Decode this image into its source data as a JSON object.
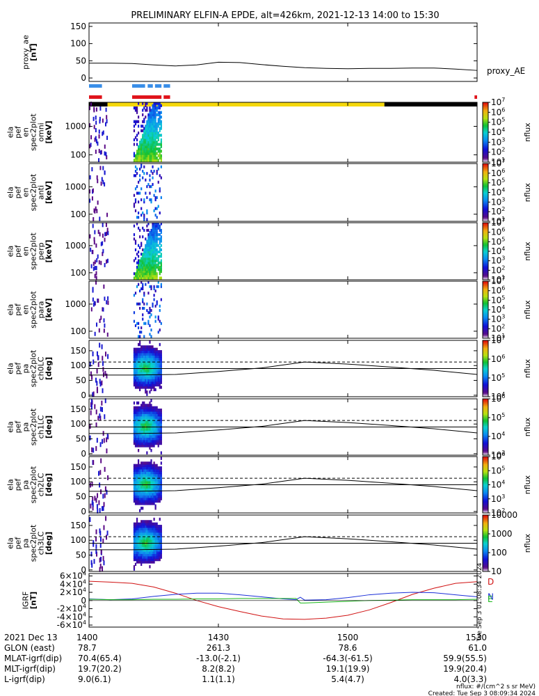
{
  "title": "PRELIMINARY ELFIN-A EPDE, alt=426km, 2021-12-13 14:00 to 15:30",
  "colors": {
    "axis": "#000000",
    "bar_blue": "#3a8ee8",
    "bar_red": "#e0141c",
    "bar_yellow": "#f5d80c",
    "bar_black": "#000000",
    "bgrf_d": "#d01010",
    "bgrf_n": "#1a2ed8",
    "bgrf_e": "#1ab81a"
  },
  "chart_data": [
    {
      "id": "proxy_ae",
      "type": "line",
      "ylabel_lines": [
        "proxy_ae",
        "[nT]"
      ],
      "ylim": [
        -10,
        160
      ],
      "yticks": [
        0,
        50,
        100,
        150
      ],
      "series_label": "proxy_AE",
      "series": [
        {
          "name": "proxy_AE",
          "x": [
            0,
            5,
            10,
            15,
            20,
            25,
            30,
            35,
            40,
            45,
            50,
            55,
            60,
            65,
            70,
            75,
            80,
            85,
            90
          ],
          "y": [
            43,
            43,
            42,
            38,
            35,
            38,
            46,
            45,
            39,
            34,
            30,
            28,
            27,
            28,
            28,
            29,
            29,
            26,
            22
          ]
        }
      ]
    },
    {
      "id": "en_omni",
      "type": "heatmap",
      "ylabel_lines": [
        "ela",
        "pef",
        "en",
        "spec2plot",
        "omni",
        "[keV]"
      ],
      "ylog": true,
      "ylim": [
        55,
        7000
      ],
      "yticks": [
        100,
        1000
      ],
      "ytick_labels": [
        "100",
        "1000"
      ],
      "zlabel": "nflux",
      "zlog": true,
      "zlim": [
        10,
        10000000
      ],
      "zticks": [
        10,
        100,
        1000,
        10000,
        100000,
        1000000,
        10000000
      ]
    },
    {
      "id": "en_anti",
      "type": "heatmap",
      "ylabel_lines": [
        "ela",
        "pef",
        "en",
        "spec2plot",
        "anti",
        "[keV]"
      ],
      "ylog": true,
      "ylim": [
        55,
        7000
      ],
      "yticks": [
        100,
        1000
      ],
      "ytick_labels": [
        "100",
        "1000"
      ],
      "zlabel": "nflux",
      "zlog": true,
      "zlim": [
        10,
        10000000
      ],
      "zticks": [
        10,
        100,
        1000,
        10000,
        100000,
        1000000,
        10000000
      ]
    },
    {
      "id": "en_perp",
      "type": "heatmap",
      "ylabel_lines": [
        "ela",
        "pef",
        "en",
        "spec2plot",
        "perp",
        "[keV]"
      ],
      "ylog": true,
      "ylim": [
        55,
        7000
      ],
      "yticks": [
        100,
        1000
      ],
      "ytick_labels": [
        "100",
        "1000"
      ],
      "zlabel": "nflux",
      "zlog": true,
      "zlim": [
        10,
        10000000
      ],
      "zticks": [
        10,
        100,
        1000,
        10000,
        100000,
        1000000,
        10000000
      ]
    },
    {
      "id": "en_para",
      "type": "heatmap",
      "ylabel_lines": [
        "ela",
        "pef",
        "en",
        "spec2plot",
        "para",
        "[keV]"
      ],
      "ylog": true,
      "ylim": [
        55,
        7000
      ],
      "yticks": [
        100,
        1000
      ],
      "ytick_labels": [
        "100",
        "1000"
      ],
      "zlabel": "nflux",
      "zlog": true,
      "zlim": [
        10,
        10000000
      ],
      "zticks": [
        10,
        100,
        1000,
        10000,
        100000,
        1000000,
        10000000
      ]
    },
    {
      "id": "pa_ch0",
      "type": "heatmap",
      "ylabel_lines": [
        "ela",
        "pef",
        "pa",
        "spec2plot",
        "ch0LC",
        "[deg]"
      ],
      "ylim": [
        -5,
        185
      ],
      "yticks": [
        0,
        50,
        100,
        150
      ],
      "zlabel": "nflux",
      "zlog": true,
      "zlim": [
        10000,
        10000000
      ],
      "zticks": [
        10000,
        100000,
        1000000,
        10000000
      ]
    },
    {
      "id": "pa_ch1",
      "type": "heatmap",
      "ylabel_lines": [
        "ela",
        "pef",
        "pa",
        "spec2plot",
        "ch1LC",
        "[deg]"
      ],
      "ylim": [
        -5,
        185
      ],
      "yticks": [
        0,
        50,
        100,
        150
      ],
      "zlabel": "nflux",
      "zlog": true,
      "zlim": [
        1000,
        1000000
      ],
      "zticks": [
        1000,
        10000,
        100000,
        1000000
      ]
    },
    {
      "id": "pa_ch2",
      "type": "heatmap",
      "ylabel_lines": [
        "ela",
        "pef",
        "pa",
        "spec2plot",
        "ch2LC",
        "[deg]"
      ],
      "ylim": [
        -5,
        185
      ],
      "yticks": [
        0,
        50,
        100,
        150
      ],
      "zlabel": "nflux",
      "zlog": true,
      "zlim": [
        100,
        1000000
      ],
      "zticks": [
        100,
        1000,
        10000,
        100000,
        1000000
      ]
    },
    {
      "id": "pa_ch3",
      "type": "heatmap",
      "ylabel_lines": [
        "ela",
        "pef",
        "pa",
        "spec2plot",
        "ch3LC",
        "[deg]"
      ],
      "ylim": [
        -5,
        185
      ],
      "yticks": [
        0,
        50,
        100,
        150
      ],
      "zlabel": "nflux",
      "zlog": true,
      "zlim": [
        10,
        10000
      ],
      "zticks": [
        10,
        100,
        1000,
        10000
      ],
      "ztick_labels": [
        "10",
        "100",
        "1000",
        "10000"
      ]
    },
    {
      "id": "bgrf",
      "type": "line",
      "ylabel_lines": [
        "IGRF",
        "[nT]"
      ],
      "ylim": [
        -65000,
        66000
      ],
      "yticks": [
        -60000,
        -40000,
        -20000,
        0,
        20000,
        40000,
        60000
      ],
      "series": [
        {
          "name": "D",
          "x": [
            0,
            5,
            10,
            15,
            20,
            25,
            30,
            35,
            40,
            45,
            50,
            55,
            60,
            65,
            70,
            75,
            80,
            85,
            90
          ],
          "y": [
            47000,
            45000,
            42000,
            33000,
            18000,
            0,
            -15000,
            -27000,
            -38000,
            -45000,
            -46000,
            -43000,
            -36000,
            -23000,
            -5000,
            15000,
            30000,
            42000,
            46000
          ]
        },
        {
          "name": "N",
          "x": [
            0,
            5,
            10,
            15,
            20,
            25,
            30,
            35,
            40,
            45,
            48,
            49,
            50,
            55,
            60,
            65,
            70,
            75,
            80,
            85,
            90
          ],
          "y": [
            4000,
            2000,
            4000,
            10000,
            15000,
            18000,
            18000,
            14000,
            9000,
            4000,
            2000,
            8000,
            1000,
            2000,
            7000,
            14000,
            18000,
            20000,
            19000,
            14000,
            9000
          ]
        },
        {
          "name": "E",
          "x": [
            0,
            5,
            10,
            15,
            20,
            25,
            30,
            35,
            40,
            45,
            48,
            49,
            50,
            55,
            60,
            65,
            70,
            75,
            80,
            85,
            90
          ],
          "y": [
            3000,
            2000,
            2000,
            3000,
            3000,
            4000,
            4000,
            5000,
            5000,
            5000,
            5000,
            -6000,
            -6000,
            -4000,
            -2000,
            0,
            1000,
            2000,
            2000,
            2000,
            3000
          ]
        }
      ]
    }
  ],
  "bars": {
    "blue_segments": [
      [
        0.0,
        3.0
      ],
      [
        10.0,
        13.0
      ],
      [
        13.6,
        14.8
      ],
      [
        15.3,
        16.8
      ],
      [
        17.3,
        18.8
      ]
    ],
    "red_segments": [
      [
        0.0,
        3.0
      ],
      [
        10.0,
        16.8
      ],
      [
        17.3,
        18.8
      ],
      [
        89.4,
        90.0
      ]
    ],
    "status_segments": [
      {
        "range": [
          0.0,
          4.3
        ],
        "color": "black"
      },
      {
        "range": [
          4.3,
          68.5
        ],
        "color": "yellow"
      },
      {
        "range": [
          68.5,
          90.0
        ],
        "color": "black"
      }
    ]
  },
  "lc_lines": {
    "solid_x": [
      0,
      10,
      20,
      30,
      40,
      45,
      50,
      60,
      70,
      80,
      90
    ],
    "solid_y": [
      68,
      68,
      70,
      80,
      92,
      102,
      112,
      105,
      95,
      84,
      70
    ],
    "dashed_deg": 112,
    "horizontal_deg": 90
  },
  "time_axis": {
    "xlim": [
      0,
      90
    ],
    "ticks": [
      0,
      30,
      60,
      90
    ],
    "rows": [
      {
        "label": "2021 Dec 13",
        "values": [
          "1400",
          "1430",
          "1500",
          "1530"
        ]
      },
      {
        "label": "GLON (east)",
        "values": [
          "78.7",
          "261.3",
          "78.6",
          "61.0"
        ]
      },
      {
        "label": "MLAT-igrf(dip)",
        "values": [
          "70.4(65.4)",
          "-13.0(-2.1)",
          "-64.3(-61.5)",
          "59.9(55.5)"
        ]
      },
      {
        "label": "MLT-igrf(dip)",
        "values": [
          "19.7(20.2)",
          "8.2(8.2)",
          "19.1(19.9)",
          "19.9(20.4)"
        ]
      },
      {
        "label": "L-igrf(dip)",
        "values": [
          "9.0(6.1)",
          "1.1(1.1)",
          "5.4(4.7)",
          "4.0(3.3)"
        ]
      }
    ]
  },
  "footer": {
    "units": "nflux: #/(cm^2 s sr MeV)",
    "created": "Created: Tue Sep  3 08:09:34 2024",
    "side_stamp": "Tue Sep  3 01:08:34 2024"
  }
}
